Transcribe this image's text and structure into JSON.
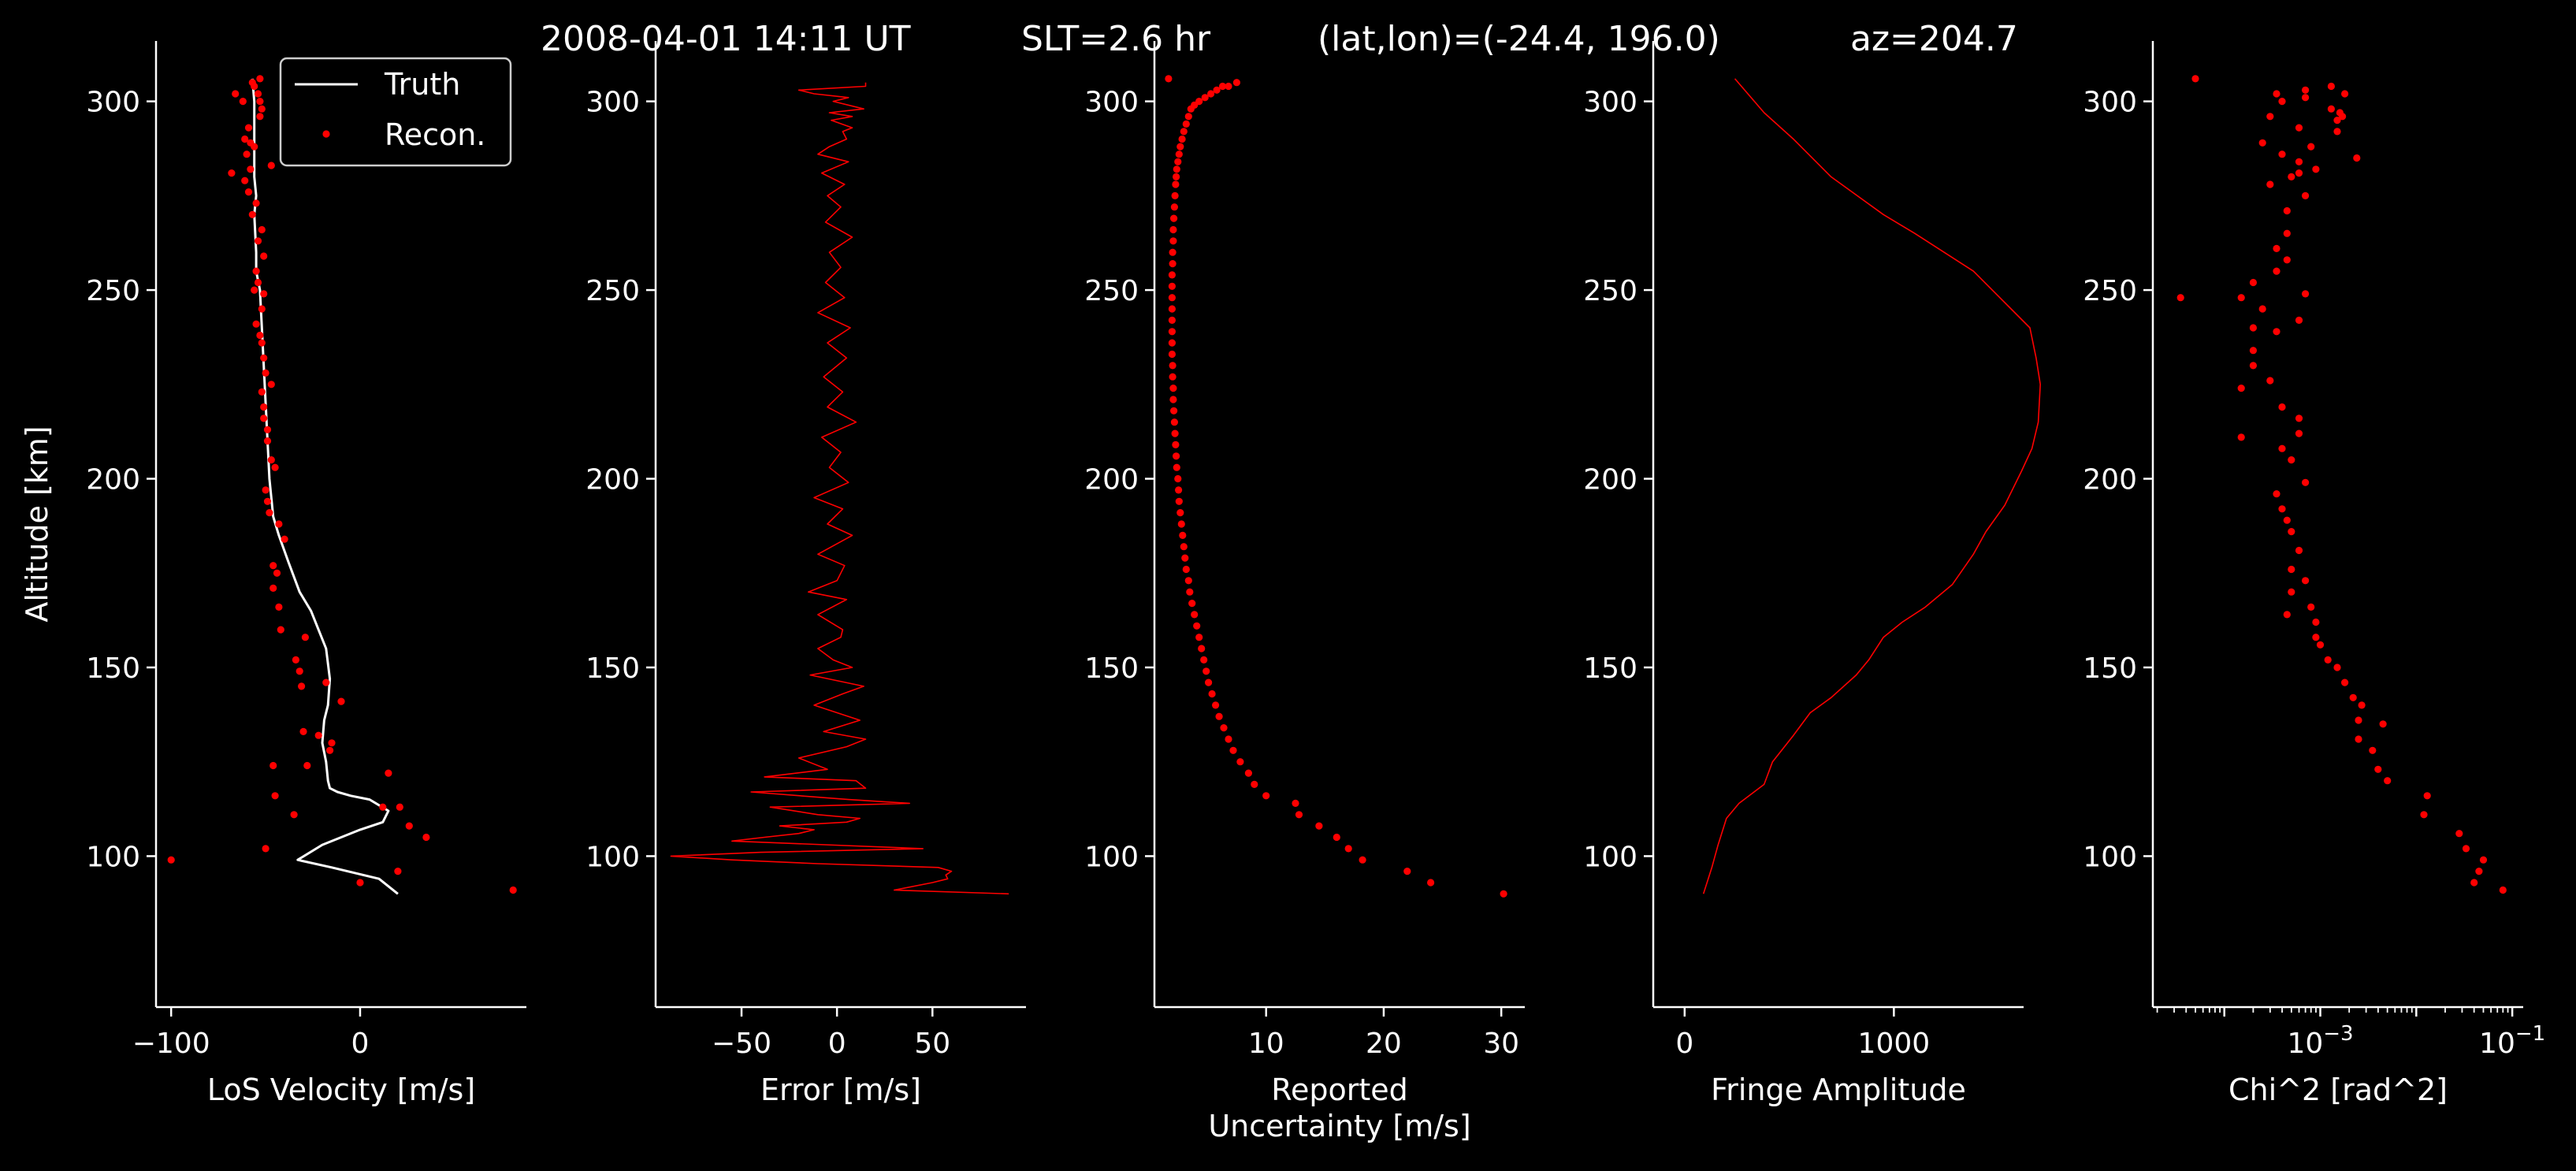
{
  "figure": {
    "title_parts": [
      "2008-04-01 14:11 UT",
      "SLT=2.6 hr",
      "(lat,lon)=(-24.4, 196.0)",
      "az=204.7"
    ],
    "ylabel": "Altitude [km]",
    "background": "#000000",
    "foreground": "#ffffff",
    "data_color": "#ff0000"
  },
  "chart_data": [
    {
      "type": "line",
      "xlabel": "LoS Velocity [m/s]",
      "ylabel": "Altitude [km]",
      "xlim": [
        -108,
        88
      ],
      "ylim": [
        60,
        316
      ],
      "xticks": [
        -100,
        0
      ],
      "yticks": [
        100,
        150,
        200,
        250,
        300
      ],
      "legend": {
        "position": "top-right",
        "entries": [
          "Truth",
          "Recon."
        ]
      },
      "series": [
        {
          "name": "Truth",
          "style": "line",
          "color": "#ffffff",
          "x": [
            20,
            10,
            -15,
            -33,
            -20,
            0,
            12,
            15,
            5,
            -5,
            -12,
            -16,
            -17,
            -18,
            -20,
            -19,
            -17,
            -16,
            -18,
            -22,
            -26,
            -32,
            -38,
            -43,
            -46,
            -47,
            -48,
            -49,
            -50,
            -51,
            -52,
            -53,
            -55,
            -55,
            -56,
            -55,
            -56,
            -56,
            -56,
            -56,
            -57
          ],
          "y": [
            90,
            94,
            97,
            99,
            103,
            107,
            109,
            112,
            115,
            116,
            117,
            118,
            120,
            125,
            130,
            136,
            140,
            147,
            155,
            160,
            165,
            170,
            178,
            185,
            190,
            195,
            200,
            210,
            220,
            230,
            240,
            250,
            255,
            260,
            270,
            275,
            280,
            285,
            290,
            300,
            306
          ]
        },
        {
          "name": "Recon.",
          "style": "points",
          "color": "#ff0000",
          "x": [
            81,
            -100,
            0,
            20,
            35,
            26,
            -50,
            21,
            12,
            -35,
            -45,
            15,
            -15,
            -16,
            -28,
            -46,
            -22,
            -30,
            -10,
            -31,
            -18,
            -32,
            -34,
            -29,
            -42,
            -43,
            -46,
            -44,
            -46,
            -40,
            -43,
            -48,
            -49,
            -50,
            -45,
            -47,
            -49,
            -49,
            -51,
            -51,
            -52,
            -47,
            -50,
            -51,
            -52,
            -53,
            -55,
            -52,
            -51,
            -54,
            -55,
            -51,
            -54,
            -52,
            -57,
            -55,
            -59,
            -61,
            -58,
            -47,
            -60,
            -58,
            -61,
            -59,
            -53,
            -52,
            -53,
            -62,
            -54,
            -66,
            -56,
            -57,
            -53,
            -68,
            -56,
            -56
          ],
          "y": [
            91,
            99,
            93,
            96,
            105,
            108,
            102,
            113,
            113,
            111,
            116,
            122,
            130,
            128,
            124,
            124,
            132,
            133,
            141,
            145,
            146,
            149,
            152,
            158,
            160,
            166,
            171,
            175,
            177,
            184,
            188,
            191,
            194,
            197,
            203,
            205,
            210,
            213,
            216,
            219,
            223,
            225,
            228,
            232,
            236,
            238,
            241,
            245,
            249,
            252,
            255,
            259,
            263,
            266,
            270,
            273,
            276,
            279,
            282,
            283,
            286,
            289,
            290,
            293,
            296,
            298,
            300,
            300,
            302,
            302,
            304,
            305,
            306,
            281,
            250,
            288
          ]
        }
      ]
    },
    {
      "type": "line",
      "xlabel": "Error [m/s]",
      "ylabel": "",
      "xlim": [
        -95,
        99
      ],
      "ylim": [
        60,
        316
      ],
      "xticks": [
        -50,
        0,
        50
      ],
      "yticks": [
        100,
        150,
        200,
        250,
        300
      ],
      "series": [
        {
          "style": "line",
          "color": "#ff0000",
          "x": [
            90,
            30,
            50,
            58,
            57,
            60,
            53,
            -10,
            -55,
            -87,
            -40,
            45,
            -55,
            -38,
            -20,
            -12,
            -30,
            5,
            12,
            -10,
            -35,
            38,
            6,
            -45,
            15,
            10,
            -38,
            -5,
            -20,
            5,
            15,
            -7,
            12,
            -12,
            3,
            14,
            -14,
            8,
            -2,
            -10,
            2,
            3,
            -10,
            5,
            -15,
            0,
            4,
            -10,
            8,
            -5,
            3,
            -12,
            6,
            -4,
            2,
            -8,
            10,
            -5,
            3,
            -7,
            5,
            -5,
            7,
            -10,
            4,
            -6,
            2,
            -4,
            8,
            -6,
            2,
            -5,
            4,
            -8,
            6,
            -10,
            -4,
            5,
            3,
            8,
            -3,
            8,
            -4,
            14,
            -2,
            6,
            -12,
            -20,
            15,
            15
          ],
          "y": [
            90,
            91,
            93,
            94,
            95,
            96,
            97,
            98,
            99,
            100,
            101,
            102,
            104,
            105,
            106,
            107,
            108,
            109,
            110,
            111,
            113,
            114,
            115,
            117,
            118,
            120,
            121,
            123,
            126,
            129,
            131,
            133,
            136,
            140,
            143,
            145,
            148,
            150,
            152,
            155,
            158,
            160,
            164,
            168,
            170,
            173,
            177,
            180,
            185,
            188,
            192,
            195,
            199,
            203,
            207,
            211,
            215,
            219,
            223,
            227,
            232,
            236,
            240,
            244,
            248,
            252,
            256,
            260,
            264,
            268,
            272,
            275,
            278,
            281,
            284,
            286,
            288,
            290,
            292,
            293,
            295,
            296,
            297,
            298,
            300,
            301,
            302,
            303,
            304,
            305
          ]
        }
      ]
    },
    {
      "type": "scatter",
      "xlabel": "Reported\nUncertainty [m/s]",
      "ylabel": "",
      "xlim": [
        0.5,
        32
      ],
      "ylim": [
        60,
        316
      ],
      "xticks": [
        10,
        20,
        30
      ],
      "yticks": [
        100,
        150,
        200,
        250,
        300
      ],
      "series": [
        {
          "style": "points",
          "color": "#ff0000",
          "x": [
            30.2,
            24.0,
            22.0,
            18.2,
            17.0,
            16.0,
            14.5,
            12.8,
            12.5,
            10.0,
            9.0,
            8.5,
            7.8,
            7.2,
            6.8,
            6.4,
            6.0,
            5.7,
            5.4,
            5.1,
            4.9,
            4.7,
            4.5,
            4.3,
            4.1,
            3.9,
            3.7,
            3.5,
            3.4,
            3.2,
            3.1,
            3.0,
            2.9,
            2.8,
            2.7,
            2.6,
            2.55,
            2.5,
            2.4,
            2.35,
            2.3,
            2.25,
            2.2,
            2.15,
            2.1,
            2.1,
            2.05,
            2.05,
            2.0,
            2.0,
            2.0,
            2.0,
            2.0,
            2.0,
            2.0,
            2.0,
            2.05,
            2.05,
            2.1,
            2.1,
            2.15,
            2.2,
            2.25,
            2.3,
            2.35,
            2.4,
            2.5,
            2.6,
            2.7,
            2.85,
            3.0,
            3.2,
            3.4,
            3.6,
            3.9,
            4.3,
            4.8,
            5.3,
            5.8,
            6.3,
            6.8,
            7.5,
            1.7
          ],
          "y": [
            90,
            93,
            96,
            99,
            102,
            105,
            108,
            111,
            114,
            116,
            119,
            122,
            125,
            128,
            131,
            134,
            137,
            140,
            143,
            146,
            149,
            152,
            155,
            158,
            161,
            164,
            167,
            170,
            173,
            176,
            179,
            182,
            185,
            188,
            191,
            194,
            197,
            200,
            203,
            206,
            209,
            212,
            215,
            218,
            221,
            224,
            227,
            230,
            233,
            236,
            239,
            242,
            245,
            248,
            251,
            254,
            257,
            260,
            263,
            266,
            269,
            272,
            275,
            278,
            280,
            282,
            284,
            286,
            288,
            290,
            292,
            294,
            296,
            298,
            299,
            300,
            301,
            302,
            303,
            304,
            304,
            305,
            306
          ]
        }
      ]
    },
    {
      "type": "line",
      "xlabel": "Fringe Amplitude",
      "ylabel": "",
      "xlim": [
        -150,
        1620
      ],
      "ylim": [
        60,
        316
      ],
      "xticks": [
        0,
        1000
      ],
      "yticks": [
        100,
        150,
        200,
        250,
        300
      ],
      "series": [
        {
          "style": "line",
          "color": "#ff0000",
          "x": [
            90,
            130,
            160,
            200,
            260,
            380,
            420,
            520,
            600,
            700,
            820,
            880,
            950,
            1040,
            1150,
            1280,
            1380,
            1440,
            1530,
            1610,
            1660,
            1690,
            1700,
            1680,
            1650,
            1560,
            1380,
            1100,
            950,
            700,
            520,
            380,
            240
          ],
          "y": [
            90,
            97,
            103,
            110,
            114,
            119,
            125,
            132,
            138,
            142,
            148,
            152,
            158,
            162,
            166,
            172,
            180,
            186,
            193,
            202,
            208,
            215,
            225,
            232,
            240,
            245,
            255,
            265,
            270,
            280,
            290,
            297,
            306
          ]
        }
      ]
    },
    {
      "type": "scatter",
      "xlabel": "Chi^2 [rad^2]",
      "ylabel": "",
      "xscale": "log",
      "xlim": [
        1.8e-05,
        0.13
      ],
      "ylim": [
        60,
        316
      ],
      "xticks": [
        0.001,
        0.1
      ],
      "xtick_labels": [
        "10^-3",
        "10^-1"
      ],
      "yticks": [
        100,
        150,
        200,
        250,
        300
      ],
      "series": [
        {
          "style": "points",
          "color": "#ff0000",
          "x": [
            0.08,
            0.04,
            0.045,
            0.05,
            0.033,
            0.028,
            0.012,
            0.013,
            0.005,
            0.004,
            0.0035,
            0.0025,
            0.0045,
            0.0025,
            0.0027,
            0.0022,
            0.0018,
            0.0015,
            0.0012,
            0.001,
            0.0009,
            0.0009,
            0.0008,
            0.00045,
            0.0005,
            0.0007,
            0.0005,
            0.0006,
            0.0005,
            0.00045,
            0.0004,
            0.00035,
            0.0007,
            0.0005,
            0.0004,
            0.0006,
            0.00015,
            0.0006,
            0.0004,
            0.00015,
            0.0003,
            0.0002,
            0.0002,
            0.00035,
            0.0006,
            0.00025,
            0.0007,
            0.0002,
            0.00015,
            0.0002,
            0.00035,
            0.00045,
            0.00035,
            0.00045,
            0.00045,
            0.0007,
            0.0003,
            0.0006,
            0.0006,
            0.00025,
            0.0004,
            0.0006,
            0.0003,
            0.0008,
            0.0007,
            0.0007,
            0.0004,
            0.0013,
            0.0005,
            0.0009,
            0.0015,
            0.00035,
            0.0013,
            0.0018,
            0.0017,
            0.0016,
            0.0024,
            0.0015,
            5e-05,
            3.5e-05
          ],
          "y": [
            91,
            93,
            96,
            99,
            102,
            106,
            111,
            116,
            120,
            123,
            128,
            131,
            135,
            136,
            140,
            142,
            146,
            150,
            152,
            156,
            158,
            162,
            166,
            164,
            170,
            173,
            176,
            181,
            186,
            189,
            192,
            196,
            199,
            205,
            208,
            212,
            211,
            216,
            219,
            224,
            226,
            230,
            234,
            239,
            242,
            245,
            249,
            240,
            248,
            252,
            255,
            258,
            261,
            265,
            271,
            275,
            278,
            281,
            284,
            289,
            286,
            293,
            296,
            288,
            301,
            303,
            300,
            304,
            280,
            282,
            292,
            302,
            298,
            302,
            296,
            297,
            285,
            295,
            306,
            248
          ]
        }
      ]
    }
  ]
}
